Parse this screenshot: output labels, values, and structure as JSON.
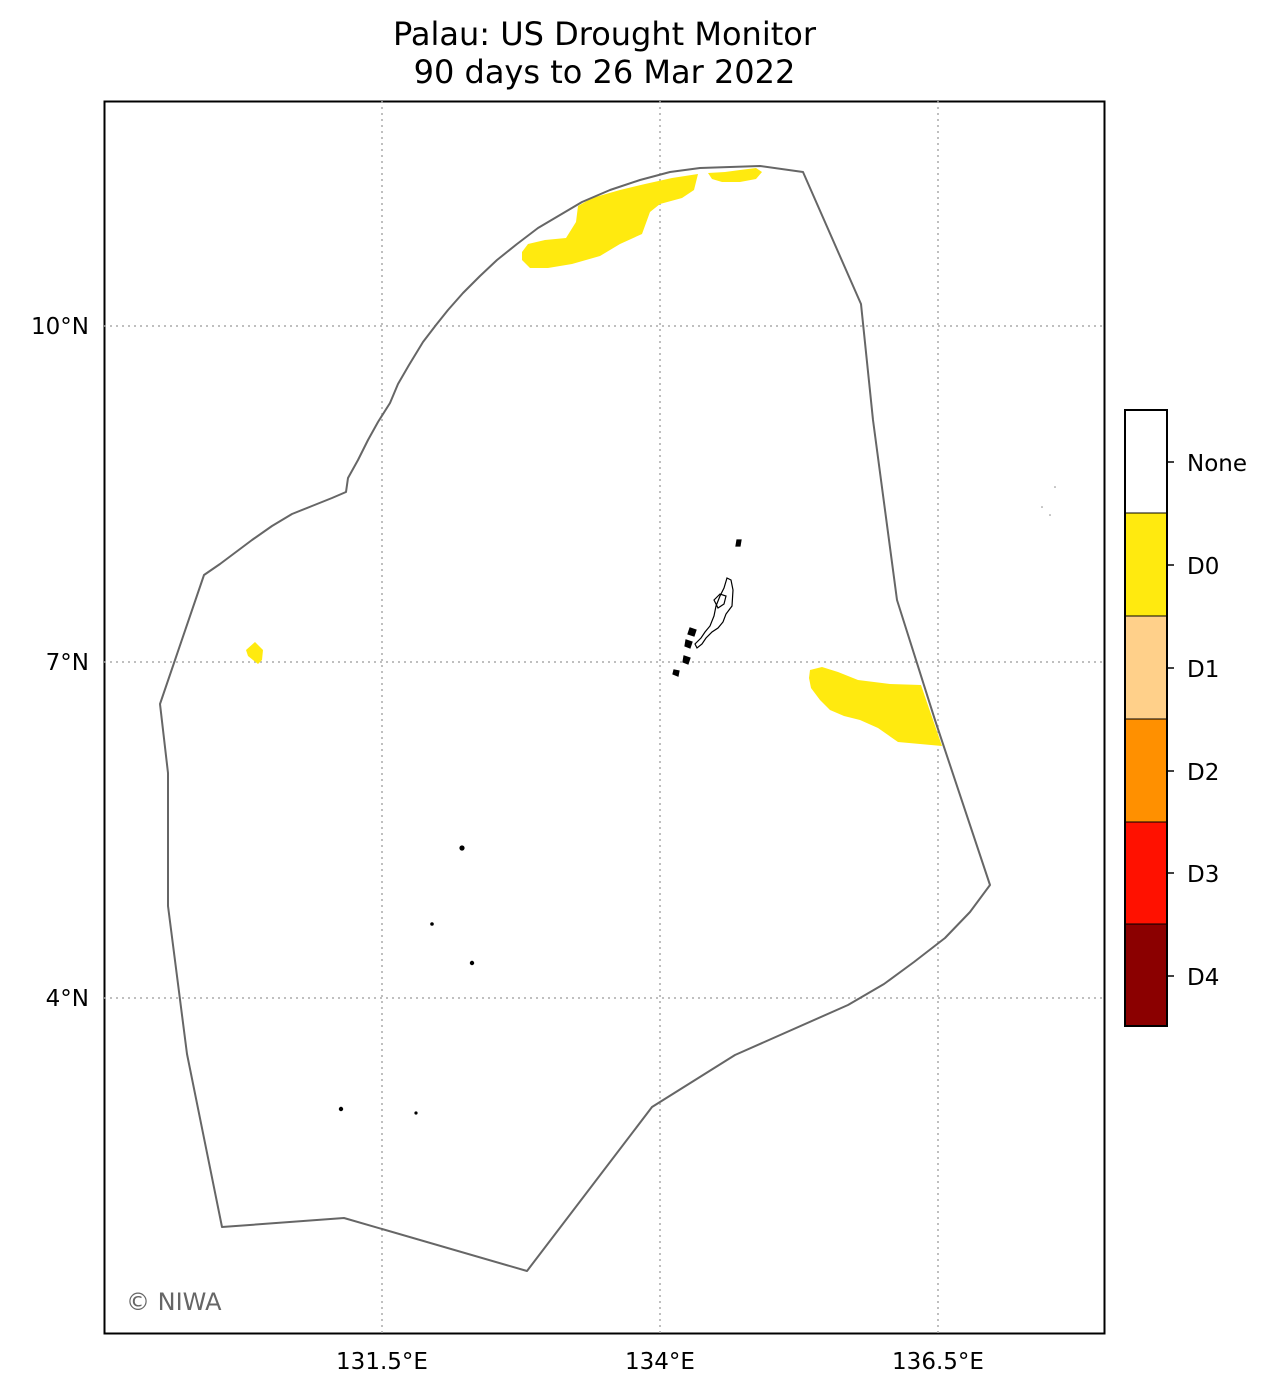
{
  "title": {
    "line1": "Palau: US Drought Monitor",
    "line2": "90 days to 26 Mar 2022"
  },
  "map": {
    "lat_ticks": [
      "10°N",
      "7°N",
      "4°N"
    ],
    "lon_ticks": [
      "131.5°E",
      "134°E",
      "136.5°E"
    ],
    "gridlines": "dotted",
    "credit": "© NIWA",
    "eez_boundary_color": "#666666",
    "land_color": "#000000",
    "drought_areas": [
      {
        "category": "D0",
        "location": "north edge of EEZ"
      },
      {
        "category": "D0",
        "location": "northeast edge of EEZ near 10.5°N"
      },
      {
        "category": "D0",
        "location": "west near 7.1°N"
      },
      {
        "category": "D0",
        "location": "east near 6.7°N"
      }
    ]
  },
  "legend": {
    "position": "right",
    "items": [
      {
        "label": "None",
        "color": "#ffffff"
      },
      {
        "label": "D0",
        "color": "#ffea0f"
      },
      {
        "label": "D1",
        "color": "#ffd08a"
      },
      {
        "label": "D2",
        "color": "#ff9000"
      },
      {
        "label": "D3",
        "color": "#ff1100"
      },
      {
        "label": "D4",
        "color": "#8b0000"
      }
    ]
  }
}
